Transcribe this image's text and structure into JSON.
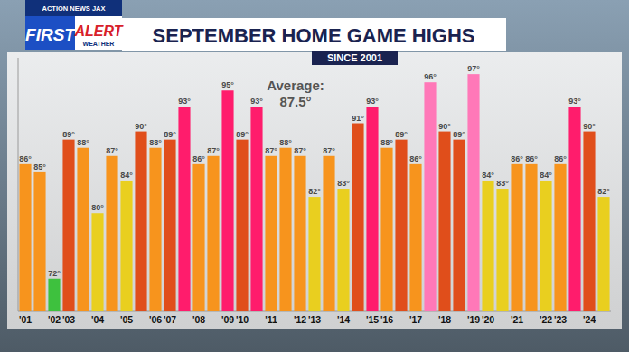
{
  "chart_data": {
    "type": "bar",
    "title": "SEPTEMBER HOME GAME HIGHS",
    "subtitle": "SINCE 2001",
    "annotations": [
      "Average:",
      "87.5°"
    ],
    "logo": [
      "ACTION NEWS JAX",
      "FIRST",
      "ALERT",
      "WEATHER"
    ],
    "categories": [
      "'01",
      null,
      "'02",
      "'03",
      null,
      "'04",
      null,
      "'05",
      null,
      "'06",
      "'07",
      null,
      "'08",
      null,
      "'09",
      "'10",
      null,
      "'11",
      null,
      "'12",
      "'13",
      null,
      "'14",
      null,
      "'15",
      "'16",
      null,
      "'17",
      null,
      "'18",
      null,
      "'19",
      "'20",
      null,
      "'21",
      null,
      "'22",
      "'23",
      null,
      "'24",
      null
    ],
    "values": [
      86,
      85,
      72,
      89,
      88,
      80,
      87,
      84,
      90,
      88,
      89,
      93,
      86,
      87,
      95,
      89,
      93,
      87,
      88,
      87,
      82,
      87,
      83,
      91,
      93,
      88,
      89,
      86,
      96,
      90,
      89,
      97,
      84,
      83,
      86,
      86,
      84,
      86,
      93,
      90,
      82
    ],
    "value_labels": [
      "86°",
      "85°",
      "72°",
      "89°",
      "88°",
      "80°",
      "87°",
      "84°",
      "90°",
      "88°",
      "89°",
      "93°",
      "86°",
      "87°",
      "95°",
      "89°",
      "93°",
      "87°",
      "88°",
      "87°",
      "82°",
      "87°",
      "83°",
      "91°",
      "93°",
      "88°",
      "89°",
      "86°",
      "96°",
      "90°",
      "89°",
      "97°",
      "84°",
      "83°",
      "86°",
      "86°",
      "84°",
      "86°",
      "93°",
      "90°",
      "82°"
    ],
    "colors": [
      "#f7941d",
      "#f7941d",
      "#3ec13e",
      "#e04e1b",
      "#f7941d",
      "#e9cf1f",
      "#f7941d",
      "#e9cf1f",
      "#e04e1b",
      "#f7941d",
      "#e04e1b",
      "#ff1c6c",
      "#f7941d",
      "#f7941d",
      "#ff1c6c",
      "#e04e1b",
      "#ff1c6c",
      "#f7941d",
      "#f7941d",
      "#f7941d",
      "#e9cf1f",
      "#f7941d",
      "#e9cf1f",
      "#e04e1b",
      "#ff1c6c",
      "#f7941d",
      "#e04e1b",
      "#f7941d",
      "#ff78b8",
      "#e04e1b",
      "#e04e1b",
      "#ff78b8",
      "#e9cf1f",
      "#e9cf1f",
      "#f7941d",
      "#f7941d",
      "#e9cf1f",
      "#f7941d",
      "#ff1c6c",
      "#e04e1b",
      "#e9cf1f"
    ],
    "ylim": [
      68,
      99
    ],
    "yticks": [],
    "grid": false,
    "data_labels": true,
    "tick_labels": "x"
  }
}
